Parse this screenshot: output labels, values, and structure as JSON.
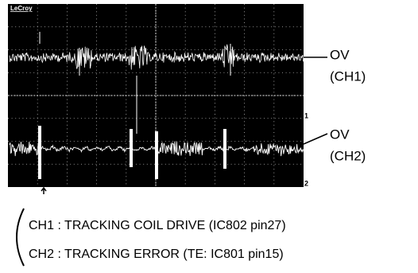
{
  "scope": {
    "brand": "LeCroy",
    "marker_1": "1",
    "marker_2": "2"
  },
  "labels": {
    "ch1_level": "OV",
    "ch1_name": "(CH1)",
    "ch2_level": "OV",
    "ch2_name": "(CH2)"
  },
  "legend": {
    "line_1": "CH1 : TRACKING COIL DRIVE (IC802 pin27)",
    "line_2": "CH2 : TRACKING ERROR (TE: IC801 pin15)"
  }
}
